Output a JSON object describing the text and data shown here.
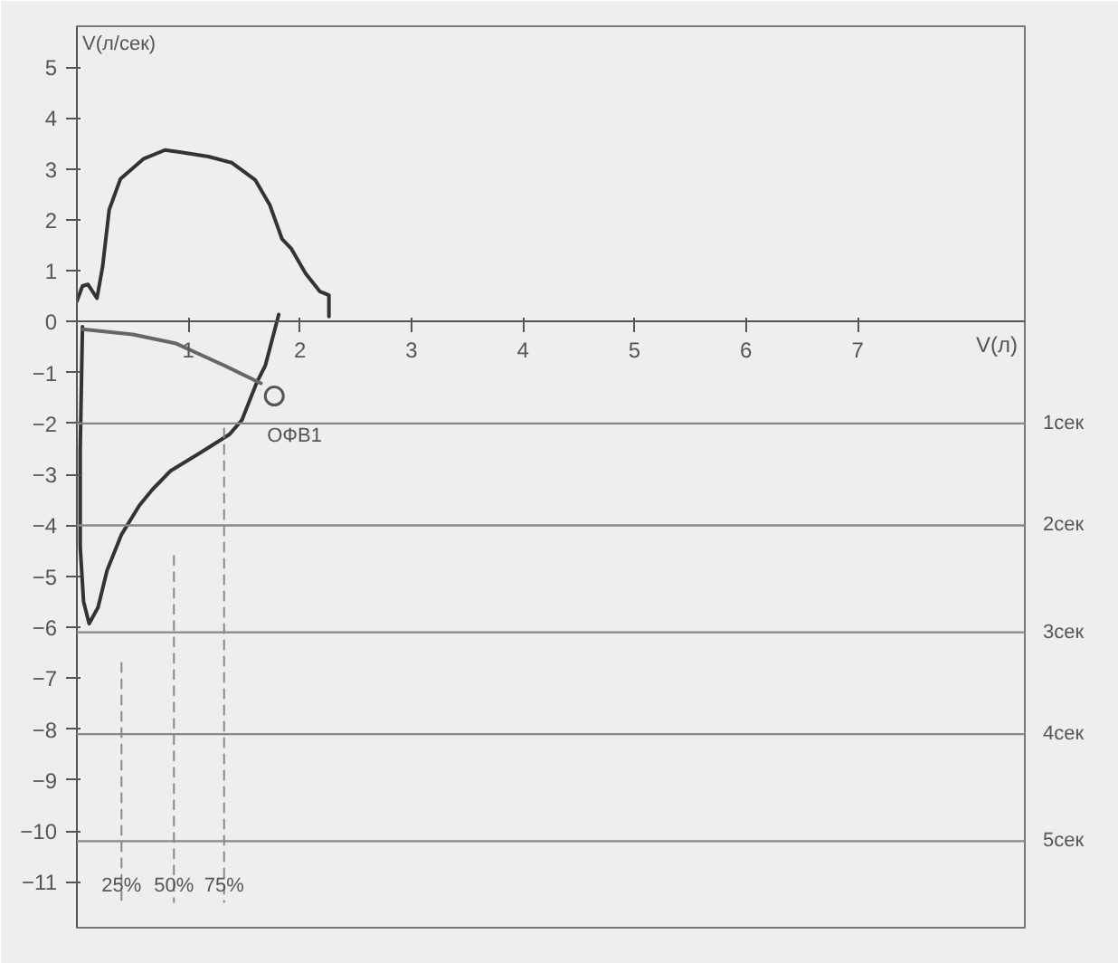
{
  "chart_data": {
    "type": "line",
    "xlabel": "V(л)",
    "ylabel": "V(л/сек)",
    "xlim": [
      0,
      8.5
    ],
    "ylim": [
      -11.9,
      5.8
    ],
    "xticks": [
      1,
      2,
      3,
      4,
      5,
      6,
      7
    ],
    "yticks": [
      -11,
      -10,
      -9,
      -8,
      -7,
      -6,
      -5,
      -4,
      -3,
      -2,
      -1,
      0,
      1,
      2,
      3,
      4,
      5
    ],
    "grid": false,
    "line_style": "solid",
    "series": [
      {
        "color": "#333333",
        "x": [
          0.0,
          0.05,
          0.1,
          0.18,
          0.23,
          0.29,
          0.39,
          0.6,
          0.79,
          0.92,
          1.18,
          1.39,
          1.6,
          1.73,
          1.84,
          1.92,
          2.05,
          2.18,
          2.26,
          2.26
        ],
        "values": [
          0.4,
          0.7,
          0.73,
          0.46,
          1.07,
          2.2,
          2.8,
          3.2,
          3.37,
          3.33,
          3.24,
          3.12,
          2.78,
          2.29,
          1.62,
          1.44,
          0.95,
          0.59,
          0.52,
          0.1
        ]
      },
      {
        "color": "#333333",
        "x": [
          1.81,
          1.69,
          1.61,
          1.48,
          1.37,
          1.11,
          0.84,
          0.68,
          0.56,
          0.4,
          0.27,
          0.19,
          0.11,
          0.06,
          0.03,
          0.03,
          0.05
        ],
        "values": [
          0.14,
          -0.86,
          -1.21,
          -1.93,
          -2.21,
          -2.57,
          -2.93,
          -3.29,
          -3.61,
          -4.18,
          -4.89,
          -5.61,
          -5.93,
          -5.5,
          -4.43,
          -2.5,
          -0.1
        ]
      },
      {
        "color": "#666666",
        "x": [
          0.05,
          0.5,
          0.89,
          1.32,
          1.65
        ],
        "values": [
          -0.15,
          -0.25,
          -0.43,
          -0.86,
          -1.21
        ]
      },
      {
        "type": "scatter",
        "name": "ОФВ1",
        "color": "#555555",
        "marker": "circle",
        "x": [
          1.77
        ],
        "values": [
          -1.46
        ]
      },
      {
        "color": "#888888",
        "line_style": "dashed",
        "x": [
          0.4,
          0.4
        ],
        "values": [
          -6.7,
          -11.4
        ]
      },
      {
        "color": "#888888",
        "line_style": "dashed",
        "x": [
          0.87,
          0.87
        ],
        "values": [
          -4.6,
          -11.4
        ]
      },
      {
        "color": "#888888",
        "line_style": "dashed",
        "x": [
          1.32,
          1.32
        ],
        "values": [
          -2.1,
          -11.4
        ]
      }
    ],
    "ref_lines": [
      {
        "axis": "y",
        "value": -2.0,
        "label": "1сек",
        "color": "#888888"
      },
      {
        "axis": "y",
        "value": -4.0,
        "label": "2сек",
        "color": "#888888"
      },
      {
        "axis": "y",
        "value": -6.1,
        "label": "3сек",
        "color": "#888888"
      },
      {
        "axis": "y",
        "value": -8.1,
        "label": "4сек",
        "color": "#888888"
      },
      {
        "axis": "y",
        "value": -10.2,
        "label": "5сек",
        "color": "#888888"
      }
    ],
    "annotations": [
      {
        "text": "25%",
        "x": 0.4,
        "y": -11.3
      },
      {
        "text": "50%",
        "x": 0.87,
        "y": -11.3
      },
      {
        "text": "75%",
        "x": 1.32,
        "y": -11.3
      }
    ]
  }
}
